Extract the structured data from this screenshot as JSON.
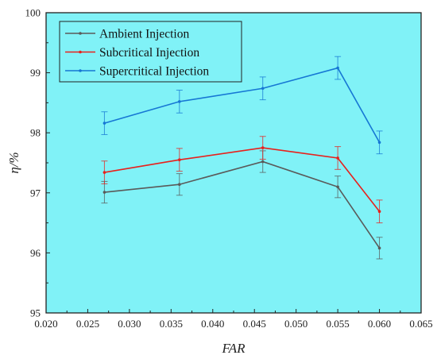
{
  "chart_data": {
    "type": "line",
    "xlabel": "FAR",
    "ylabel": "η/%",
    "xlim": [
      0.02,
      0.065
    ],
    "ylim": [
      95,
      100
    ],
    "x_ticks": [
      "0.020",
      "0.025",
      "0.030",
      "0.035",
      "0.040",
      "0.045",
      "0.050",
      "0.055",
      "0.060",
      "0.065"
    ],
    "y_ticks": [
      "95",
      "96",
      "97",
      "98",
      "99",
      "100"
    ],
    "x": [
      0.027,
      0.036,
      0.046,
      0.055,
      0.06
    ],
    "plot_background": "#80f2f7",
    "legend_position": "top-left",
    "grid": false,
    "series": [
      {
        "name": "Ambient Injection",
        "color": "#5a5a5a",
        "values": [
          97.01,
          97.14,
          97.52,
          97.1,
          96.08
        ],
        "error": [
          0.18,
          0.18,
          0.18,
          0.18,
          0.18
        ]
      },
      {
        "name": "Subcritical Injection",
        "color": "#e8201c",
        "values": [
          97.34,
          97.55,
          97.75,
          97.58,
          96.69
        ],
        "error": [
          0.19,
          0.19,
          0.19,
          0.19,
          0.19
        ]
      },
      {
        "name": "Supercritical Injection",
        "color": "#1677d4",
        "values": [
          98.16,
          98.52,
          98.74,
          99.08,
          97.84
        ],
        "error": [
          0.19,
          0.19,
          0.19,
          0.19,
          0.19
        ]
      }
    ]
  }
}
